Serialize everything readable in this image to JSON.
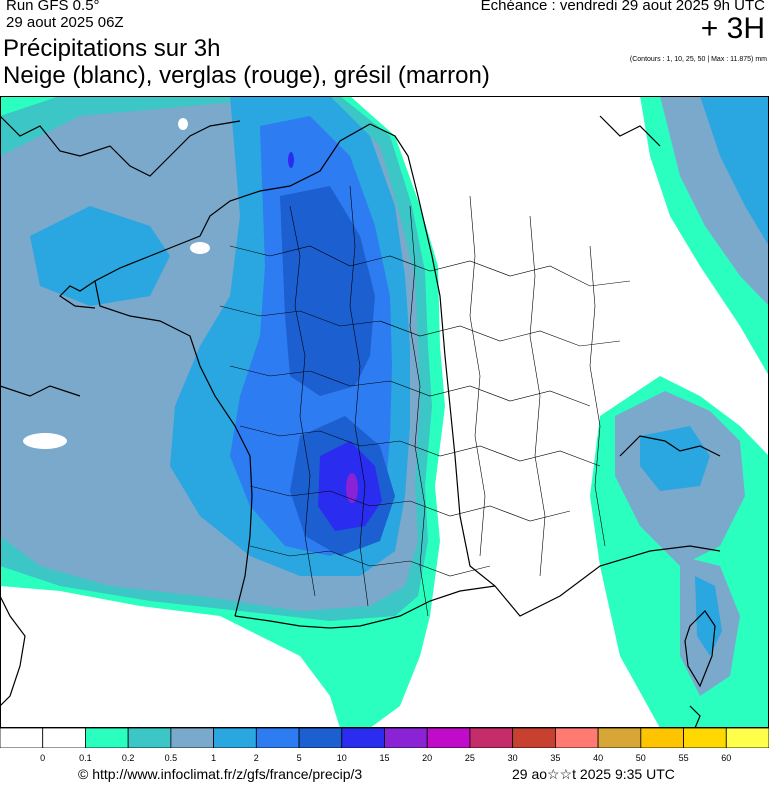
{
  "header": {
    "run": "Run GFS 0.5°",
    "date": "29 aout 2025 06Z",
    "title_line1": "Précipitations sur 3h",
    "title_line2": "Neige (blanc), verglas (rouge), grésil (marron)",
    "echeance": "Echéance : vendredi 29 aout 2025 9h UTC",
    "hour": "+ 3H",
    "contours_note": "(Contours : 1, 10, 25, 50 | Max : 11.875) mm"
  },
  "legend": {
    "colors": [
      "#ffffff",
      "#ffffff",
      "#2affc0",
      "#3cc6c6",
      "#7aa9cc",
      "#2aa6e0",
      "#2e7cf2",
      "#1c5fd0",
      "#2a2cf0",
      "#8a22d6",
      "#c00cc8",
      "#c42c6a",
      "#c84030",
      "#ff7a72",
      "#d8a636",
      "#ffc400",
      "#ffd800",
      "#ffff4a"
    ],
    "labels": [
      "0",
      "0.1",
      "0.2",
      "0.5",
      "1",
      "2",
      "5",
      "10",
      "15",
      "20",
      "25",
      "30",
      "35",
      "40",
      "50",
      "55",
      "60"
    ]
  },
  "footer": {
    "url": "© http://www.infoclimat.fr/z/gfs/france/precip/3",
    "timestamp": "29 ao☆☆t 2025  9:35 UTC"
  }
}
